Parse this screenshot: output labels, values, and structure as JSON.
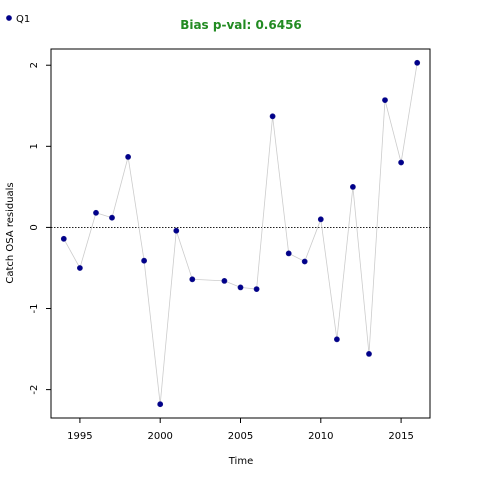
{
  "chart_data": {
    "type": "line",
    "title": "Bias p-val: 0.6456",
    "title_color": "#228B22",
    "xlabel": "Time",
    "ylabel": "Catch OSA residuals",
    "xlim": [
      1993.2,
      2016.8
    ],
    "ylim": [
      -2.35,
      2.2
    ],
    "x_ticks": [
      1995,
      2000,
      2005,
      2010,
      2015
    ],
    "y_ticks": [
      -2,
      -1,
      0,
      1,
      2
    ],
    "reference_line": 0,
    "legend": {
      "placement": "top-left",
      "entries": [
        {
          "label": "Q1",
          "color": "#00008B"
        }
      ]
    },
    "series": [
      {
        "name": "Q1",
        "color": "#00008B",
        "line_color": "#CCCCCC",
        "x": [
          1994,
          1995,
          1996,
          1997,
          1998,
          1999,
          2000,
          2001,
          2002,
          2004,
          2005,
          2006,
          2007,
          2008,
          2009,
          2010,
          2011,
          2012,
          2013,
          2014,
          2015,
          2016
        ],
        "y": [
          -0.14,
          -0.5,
          0.18,
          0.12,
          0.87,
          -0.41,
          -2.18,
          -0.04,
          -0.64,
          -0.66,
          -0.74,
          -0.76,
          1.37,
          -0.32,
          -0.42,
          0.1,
          -1.38,
          0.5,
          -1.56,
          1.57,
          0.8,
          2.03
        ]
      }
    ]
  }
}
